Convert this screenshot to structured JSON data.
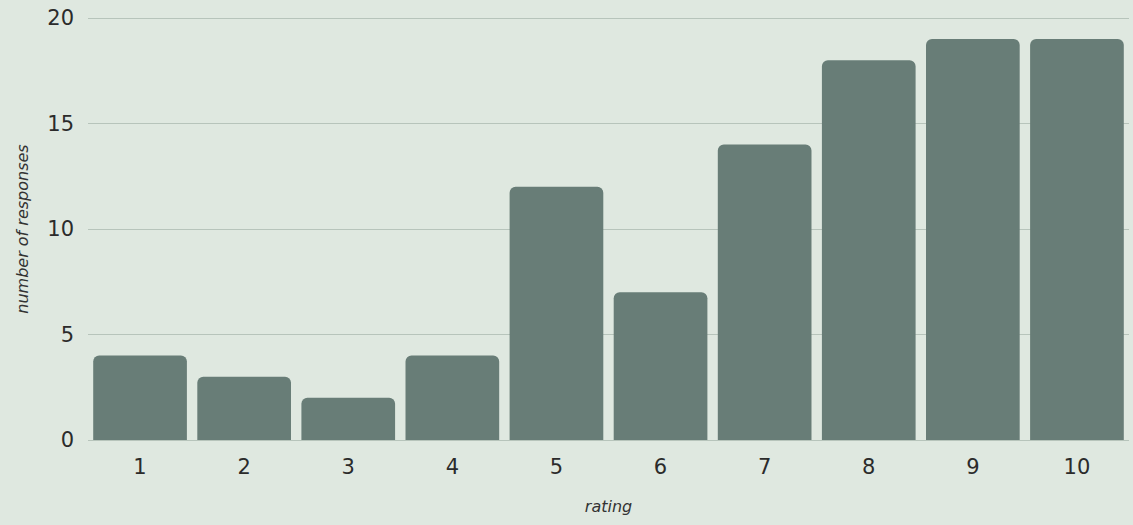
{
  "chart_data": {
    "type": "bar",
    "categories": [
      "1",
      "2",
      "3",
      "4",
      "5",
      "6",
      "7",
      "8",
      "9",
      "10"
    ],
    "values": [
      4,
      3,
      2,
      4,
      12,
      7,
      14,
      18,
      19,
      19
    ],
    "color": "#687d77",
    "xlabel": "rating",
    "ylabel": "number of responses",
    "ylim": [
      0,
      20
    ],
    "yticks": [
      0,
      5,
      10,
      15,
      20
    ],
    "grid": true
  }
}
